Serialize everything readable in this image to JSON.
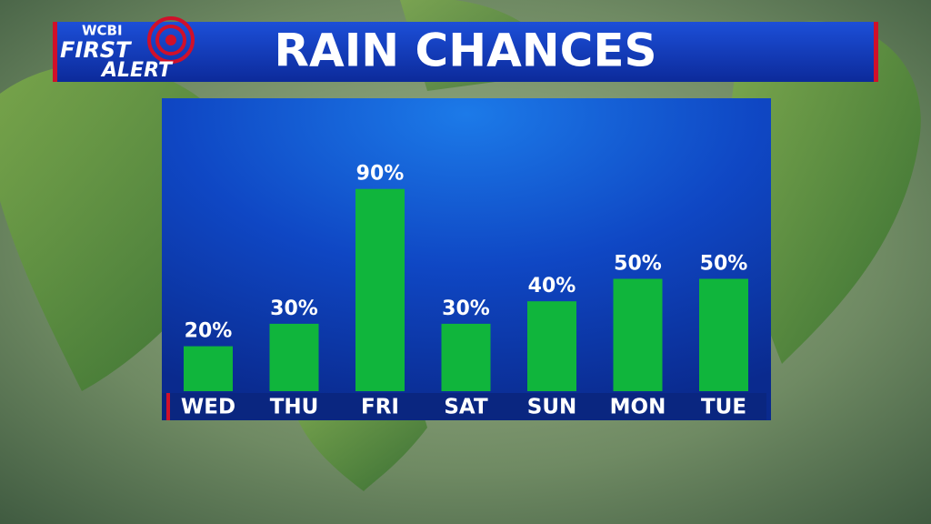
{
  "chart_data": {
    "type": "bar",
    "title": "RAIN CHANCES",
    "brand": {
      "station": "WCBI",
      "line1": "FIRST",
      "line2": "ALERT"
    },
    "categories": [
      "WED",
      "THU",
      "FRI",
      "SAT",
      "SUN",
      "MON",
      "TUE"
    ],
    "values": [
      20,
      30,
      90,
      30,
      40,
      50,
      50
    ],
    "value_labels": [
      "20%",
      "30%",
      "90%",
      "30%",
      "40%",
      "50%",
      "50%"
    ],
    "color": "#10b53c"
  }
}
